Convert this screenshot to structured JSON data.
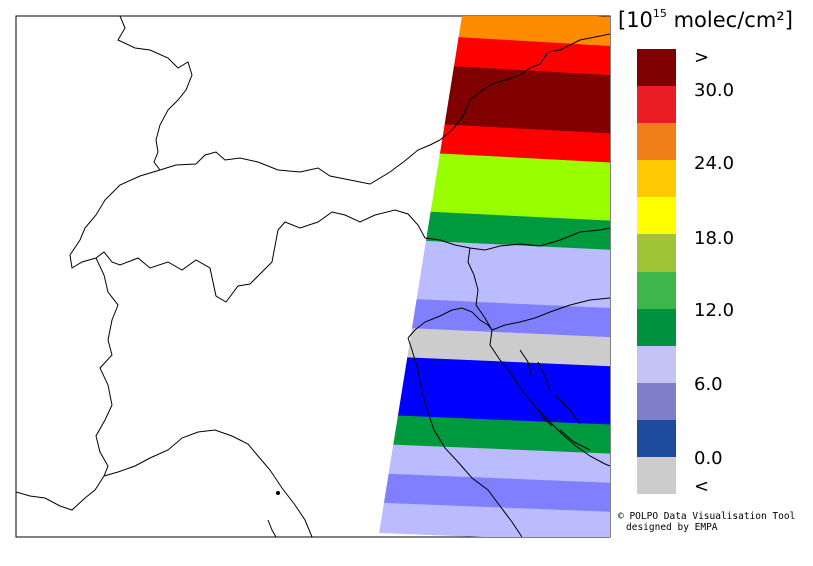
{
  "legend": {
    "unit_prefix": "[10",
    "unit_exponent": "15",
    "unit_suffix": " molec/cm²]",
    "swatches": [
      {
        "color": "#7f0000"
      },
      {
        "color": "#ea1c24"
      },
      {
        "color": "#f07f1a"
      },
      {
        "color": "#ffc800"
      },
      {
        "color": "#ffff00"
      },
      {
        "color": "#a0c437"
      },
      {
        "color": "#3fb54a"
      },
      {
        "color": "#00923f"
      },
      {
        "color": "#c3c3f5"
      },
      {
        "color": "#7f7fc7"
      },
      {
        "color": "#1f4b9e"
      },
      {
        "color": "#cccccc"
      }
    ],
    "labels": [
      ">",
      "30.0",
      "24.0",
      "18.0",
      "12.0",
      "6.0",
      "0.0",
      "<"
    ]
  },
  "credit": {
    "line1": "© POLPO Data Visualisation Tool",
    "line2": "designed by EMPA"
  },
  "swath": {
    "rows": [
      {
        "color": "#ff8c00"
      },
      {
        "color": "#ff0000"
      },
      {
        "color": "#800000"
      },
      {
        "color": "#800000"
      },
      {
        "color": "#ff0000"
      },
      {
        "color": "#99ff00"
      },
      {
        "color": "#99ff00"
      },
      {
        "color": "#009a3e"
      },
      {
        "color": "#bbbbff"
      },
      {
        "color": "#bbbbff"
      },
      {
        "color": "#8080ff"
      },
      {
        "color": "#cccccc"
      },
      {
        "color": "#0000ff"
      },
      {
        "color": "#0000ff"
      },
      {
        "color": "#009a3e"
      },
      {
        "color": "#bbbbff"
      },
      {
        "color": "#8080ff"
      },
      {
        "color": "#bbbbff"
      }
    ]
  }
}
